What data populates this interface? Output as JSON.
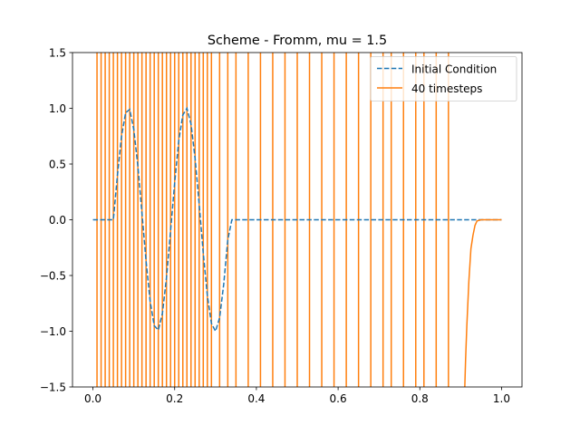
{
  "chart_data": {
    "type": "line",
    "title": "Scheme - Fromm, mu = 1.5",
    "xlabel": "",
    "ylabel": "",
    "xlim": [
      -0.05,
      1.05
    ],
    "ylim": [
      -1.5,
      1.5
    ],
    "xticks": [
      0.0,
      0.2,
      0.4,
      0.6,
      0.8,
      1.0
    ],
    "xtick_labels": [
      "0.0",
      "0.2",
      "0.4",
      "0.6",
      "0.8",
      "1.0"
    ],
    "yticks": [
      -1.5,
      -1.0,
      -0.5,
      0.0,
      0.5,
      1.0,
      1.5
    ],
    "ytick_labels": [
      "−1.5",
      "−1.0",
      "−0.5",
      "0.0",
      "0.5",
      "1.0",
      "1.5"
    ],
    "grid": false,
    "legend_position": "upper right",
    "series": [
      {
        "name": "Initial Condition",
        "color": "#1f77b4",
        "style": "dashed",
        "x": [
          0.0,
          0.05,
          0.06,
          0.07,
          0.08,
          0.09,
          0.1,
          0.11,
          0.12,
          0.13,
          0.14,
          0.15,
          0.16,
          0.17,
          0.18,
          0.19,
          0.2,
          0.21,
          0.22,
          0.23,
          0.24,
          0.25,
          0.26,
          0.27,
          0.28,
          0.29,
          0.3,
          0.31,
          0.32,
          0.33,
          0.34,
          0.35,
          0.36,
          0.4,
          0.6,
          0.8,
          1.0
        ],
        "y": [
          0.0,
          0.0,
          0.4,
          0.75,
          0.96,
          0.99,
          0.81,
          0.48,
          0.06,
          -0.37,
          -0.73,
          -0.95,
          -0.99,
          -0.84,
          -0.52,
          -0.1,
          0.33,
          0.71,
          0.94,
          1.0,
          0.86,
          0.55,
          0.14,
          -0.3,
          -0.68,
          -0.93,
          -1.0,
          -0.88,
          -0.58,
          -0.18,
          0.0,
          0.0,
          0.0,
          0.0,
          0.0,
          0.0,
          0.0
        ]
      },
      {
        "name": "40 timesteps",
        "color": "#ff7f0e",
        "style": "solid",
        "spike_x": [
          0.01,
          0.02,
          0.03,
          0.04,
          0.05,
          0.06,
          0.07,
          0.08,
          0.09,
          0.1,
          0.11,
          0.12,
          0.13,
          0.14,
          0.15,
          0.16,
          0.17,
          0.18,
          0.19,
          0.2,
          0.21,
          0.22,
          0.23,
          0.24,
          0.25,
          0.26,
          0.27,
          0.28,
          0.29,
          0.31,
          0.33,
          0.35,
          0.38,
          0.41,
          0.44,
          0.47,
          0.5,
          0.53,
          0.56,
          0.59,
          0.62,
          0.65,
          0.68,
          0.71,
          0.73,
          0.76,
          0.79,
          0.81,
          0.84,
          0.87
        ],
        "x": [
          0.91,
          0.912,
          0.915,
          0.92,
          0.925,
          0.93,
          0.935,
          0.94,
          0.95,
          0.96,
          0.98,
          1.0
        ],
        "y": [
          -1.5,
          -1.25,
          -0.95,
          -0.55,
          -0.26,
          -0.14,
          -0.05,
          -0.01,
          0.0,
          0.0,
          0.0,
          0.0
        ]
      }
    ]
  }
}
